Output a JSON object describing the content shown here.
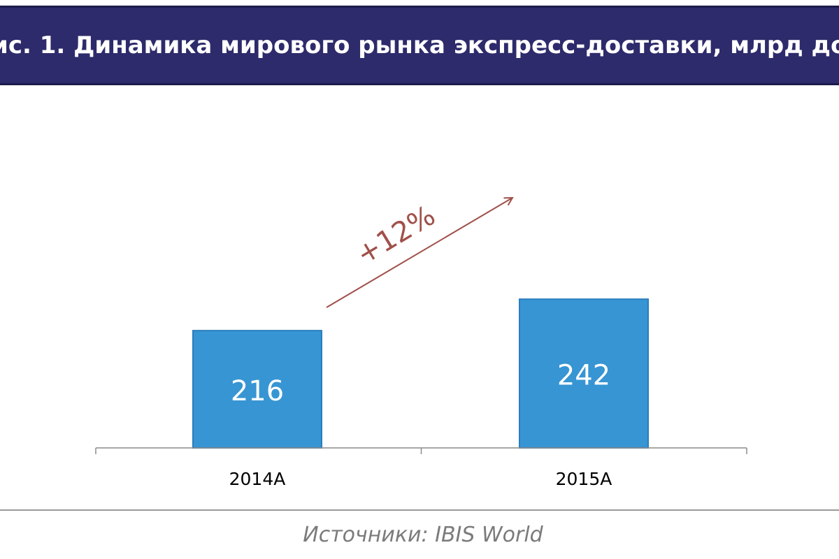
{
  "header": {
    "title": "ис. 1. Динамика мирового рынка экспресс-доставки, млрд дол"
  },
  "chart_data": {
    "type": "bar",
    "categories": [
      "2014А",
      "2015А"
    ],
    "values": [
      216,
      242
    ],
    "data_labels": [
      "216",
      "242"
    ],
    "annotation": "+12%",
    "title": "",
    "xlabel": "",
    "ylabel": "",
    "grid": false,
    "legend": "none",
    "colors": {
      "bar": "#3795d3",
      "bar_stroke": "#2a7dbf",
      "annotation": "#a0504a",
      "axis": "#8c8c8c",
      "tick_label": "#000000"
    }
  },
  "source": {
    "text": "Источники: IBIS World"
  }
}
